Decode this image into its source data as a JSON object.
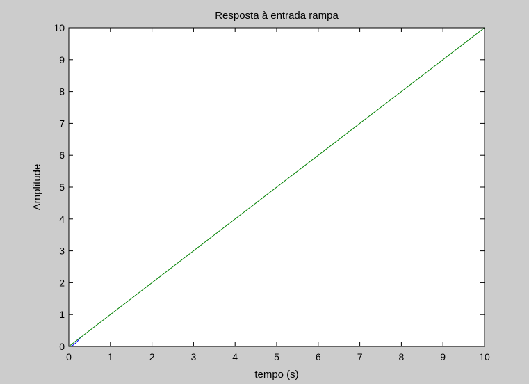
{
  "window": {
    "background_color": "#cccccc",
    "axes_background_color": "#ffffff"
  },
  "chart_data": {
    "type": "line",
    "title": "Resposta à entrada rampa",
    "xlabel": "tempo (s)",
    "ylabel": "Amplitude",
    "xlim": [
      0,
      10
    ],
    "ylim": [
      0,
      10
    ],
    "xticks": [
      0,
      1,
      2,
      3,
      4,
      5,
      6,
      7,
      8,
      9,
      10
    ],
    "yticks": [
      0,
      1,
      2,
      3,
      4,
      5,
      6,
      7,
      8,
      9,
      10
    ],
    "grid": false,
    "legend": "none",
    "series": [
      {
        "color": "#0000ff",
        "x": [
          0,
          0.05,
          0.1,
          0.15,
          0.2,
          0.25,
          0.3
        ],
        "y": [
          0,
          0.01,
          0.04,
          0.09,
          0.15,
          0.23,
          0.31
        ]
      },
      {
        "color": "#008000",
        "x": [
          0,
          10
        ],
        "y": [
          0,
          10
        ]
      }
    ]
  }
}
